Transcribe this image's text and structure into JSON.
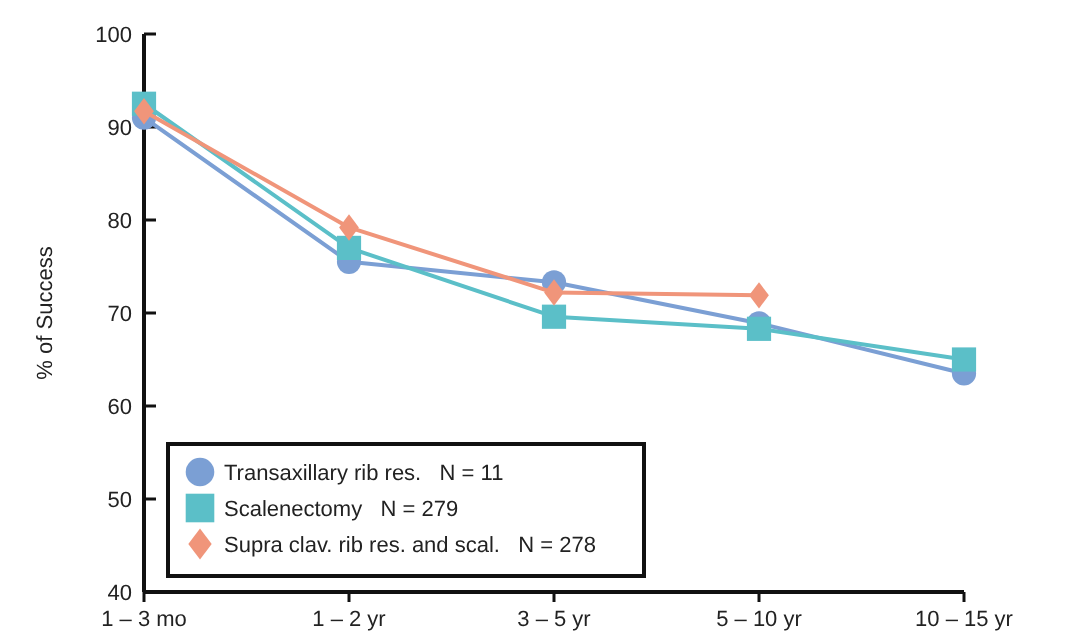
{
  "chart_data": {
    "type": "line",
    "ylabel": "% of Success",
    "categories": [
      "1 – 3 mo",
      "1 – 2 yr",
      "3 – 5 yr",
      "5 – 10 yr",
      "10 – 15 yr"
    ],
    "ylim": [
      40,
      100
    ],
    "yticks": [
      40,
      50,
      60,
      70,
      80,
      90,
      100
    ],
    "grid": false,
    "legend": "bottom left",
    "line_style": "solid",
    "series": [
      {
        "name": "Transaxillary rib res.   N = 11",
        "color": "#7b9fd4",
        "marker": "circle",
        "values": [
          91,
          75.5,
          73.3,
          68.9,
          63.5
        ]
      },
      {
        "name": "Scalenectomy   N = 279",
        "color": "#5bbfc8",
        "marker": "square",
        "values": [
          92.5,
          77,
          69.6,
          68.3,
          65
        ]
      },
      {
        "name": "Supra clav. rib res. and scal.   N = 278",
        "color": "#f0957a",
        "marker": "diamond",
        "values": [
          91.7,
          79.2,
          72.2,
          71.9,
          null
        ]
      }
    ]
  }
}
